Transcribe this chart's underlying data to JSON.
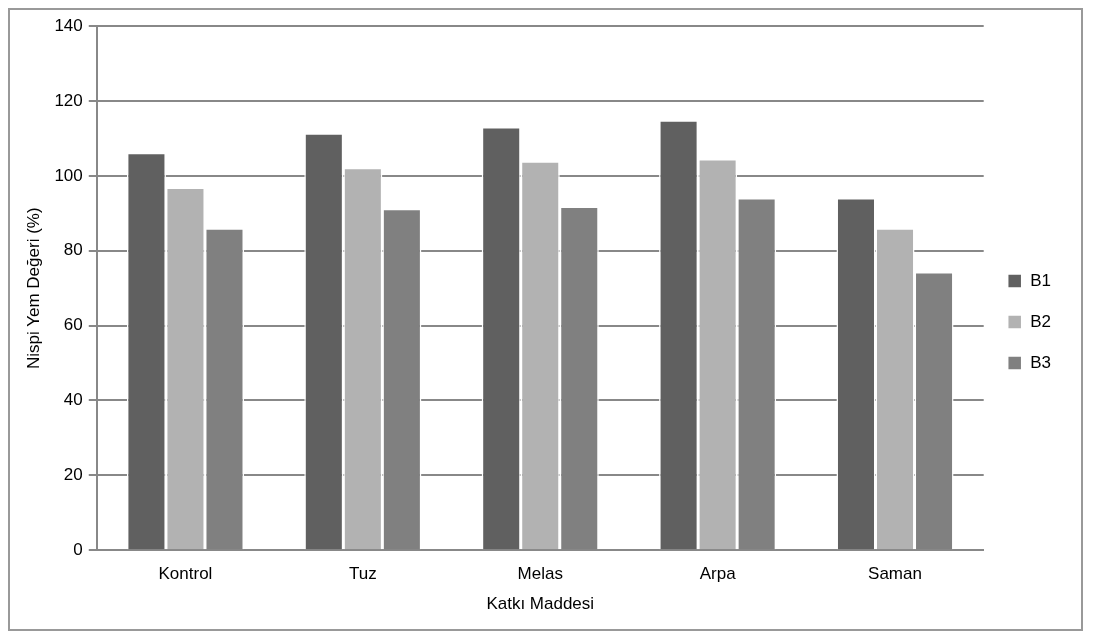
{
  "chart_data": {
    "type": "bar",
    "xlabel": "Katkı Maddesi",
    "ylabel": "Nispi Yem Değeri (%)",
    "categories": [
      "Kontrol",
      "Tuz",
      "Melas",
      "Arpa",
      "Saman"
    ],
    "series": [
      {
        "name": "B1",
        "color": "#606060",
        "values": [
          106.2,
          111.4,
          113.1,
          114.9,
          94.1
        ]
      },
      {
        "name": "B2",
        "color": "#b2b2b2",
        "values": [
          96.9,
          102.2,
          103.9,
          104.5,
          86.0
        ]
      },
      {
        "name": "B3",
        "color": "#808080",
        "values": [
          86.0,
          91.2,
          91.8,
          94.1,
          74.3
        ]
      }
    ],
    "ylim": [
      0,
      140
    ],
    "yticks": [
      0,
      20,
      40,
      60,
      80,
      100,
      120,
      140
    ],
    "grid": "y",
    "legend": "right"
  }
}
